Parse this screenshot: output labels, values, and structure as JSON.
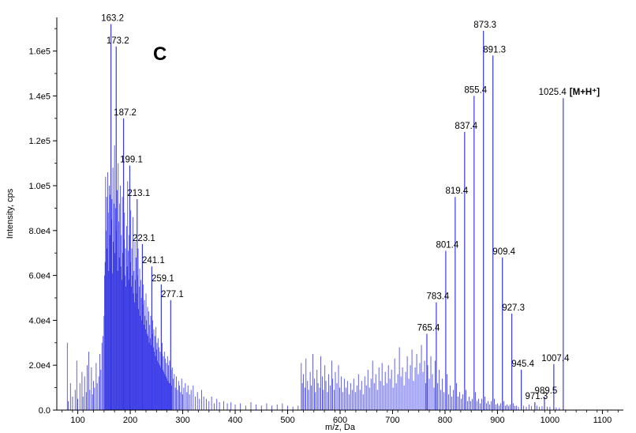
{
  "chart_data": {
    "type": "bar",
    "title": "",
    "panel_letter": "C",
    "xlabel": "m/z, Da",
    "ylabel": "Intensity, cps",
    "xlim": [
      60,
      1140
    ],
    "ylim": [
      0,
      175000
    ],
    "x_ticks": [
      100,
      200,
      300,
      400,
      500,
      600,
      700,
      800,
      900,
      1000,
      1100
    ],
    "x_tick_labels": [
      "100",
      "200",
      "300",
      "400",
      "500",
      "600",
      "700",
      "800",
      "900",
      "1000",
      "1100"
    ],
    "y_ticks": [
      0,
      20000,
      40000,
      60000,
      80000,
      100000,
      120000,
      140000,
      160000
    ],
    "y_tick_labels": [
      "0.0",
      "2.0e4",
      "4.0e4",
      "6.0e4",
      "8.0e4",
      "1.0e5",
      "1.2e5",
      "1.4e5",
      "1.6e5"
    ],
    "grid": false,
    "color": "#3a3ae8",
    "labeled_peaks": [
      {
        "mz": 163.2,
        "intensity": 172000,
        "label": "163.2"
      },
      {
        "mz": 173.2,
        "intensity": 162000,
        "label": "173.2"
      },
      {
        "mz": 187.2,
        "intensity": 130000,
        "label": "187.2"
      },
      {
        "mz": 199.1,
        "intensity": 109000,
        "label": "199.1"
      },
      {
        "mz": 213.1,
        "intensity": 94000,
        "label": "213.1"
      },
      {
        "mz": 223.1,
        "intensity": 74000,
        "label": "223.1"
      },
      {
        "mz": 241.1,
        "intensity": 64000,
        "label": "241.1"
      },
      {
        "mz": 259.1,
        "intensity": 56000,
        "label": "259.1"
      },
      {
        "mz": 277.1,
        "intensity": 49000,
        "label": "277.1"
      },
      {
        "mz": 765.4,
        "intensity": 34000,
        "label": "765.4"
      },
      {
        "mz": 783.4,
        "intensity": 48000,
        "label": "783.4"
      },
      {
        "mz": 801.4,
        "intensity": 71000,
        "label": "801.4"
      },
      {
        "mz": 819.4,
        "intensity": 95000,
        "label": "819.4"
      },
      {
        "mz": 837.4,
        "intensity": 124000,
        "label": "837.4"
      },
      {
        "mz": 855.4,
        "intensity": 140000,
        "label": "855.4"
      },
      {
        "mz": 873.3,
        "intensity": 169000,
        "label": "873.3"
      },
      {
        "mz": 891.3,
        "intensity": 158000,
        "label": "891.3"
      },
      {
        "mz": 909.4,
        "intensity": 68000,
        "label": "909.4"
      },
      {
        "mz": 927.3,
        "intensity": 43000,
        "label": "927.3"
      },
      {
        "mz": 945.4,
        "intensity": 18000,
        "label": "945.4"
      },
      {
        "mz": 971.3,
        "intensity": 3500,
        "label": "971.3"
      },
      {
        "mz": 989.5,
        "intensity": 6000,
        "label": "989.5"
      },
      {
        "mz": 1007.4,
        "intensity": 20500,
        "label": "1007.4"
      },
      {
        "mz": 1025.4,
        "intensity": 139000,
        "label": "1025.4",
        "annotation": "[M+H⁺]"
      }
    ],
    "minor_peaks": [
      [
        80,
        30000
      ],
      [
        82,
        4000
      ],
      [
        86,
        12000
      ],
      [
        90,
        6000
      ],
      [
        95,
        9000
      ],
      [
        98,
        22000
      ],
      [
        100,
        5000
      ],
      [
        104,
        12000
      ],
      [
        108,
        17000
      ],
      [
        110,
        6000
      ],
      [
        113,
        15000
      ],
      [
        116,
        8000
      ],
      [
        118,
        20000
      ],
      [
        121,
        26000
      ],
      [
        123,
        9000
      ],
      [
        126,
        19000
      ],
      [
        128,
        7000
      ],
      [
        130,
        13000
      ],
      [
        132,
        10000
      ],
      [
        135,
        21000
      ],
      [
        137,
        12000
      ],
      [
        140,
        15000
      ],
      [
        142,
        25000
      ],
      [
        144,
        18000
      ],
      [
        146,
        30000
      ],
      [
        148,
        33000
      ],
      [
        150,
        42000
      ],
      [
        151,
        60000
      ],
      [
        152,
        66000
      ],
      [
        153,
        104000
      ],
      [
        154,
        80000
      ],
      [
        155,
        95000
      ],
      [
        156,
        72000
      ],
      [
        157,
        106000
      ],
      [
        158,
        88000
      ],
      [
        159,
        62000
      ],
      [
        160,
        100000
      ],
      [
        161,
        78000
      ],
      [
        162,
        96000
      ],
      [
        164,
        85000
      ],
      [
        165,
        94000
      ],
      [
        166,
        61000
      ],
      [
        167,
        108000
      ],
      [
        168,
        75000
      ],
      [
        169,
        92000
      ],
      [
        170,
        118000
      ],
      [
        171,
        70000
      ],
      [
        172,
        90000
      ],
      [
        174,
        80000
      ],
      [
        175,
        98000
      ],
      [
        176,
        62000
      ],
      [
        177,
        110000
      ],
      [
        178,
        84000
      ],
      [
        179,
        68000
      ],
      [
        180,
        92000
      ],
      [
        181,
        100000
      ],
      [
        182,
        64000
      ],
      [
        183,
        78000
      ],
      [
        184,
        58000
      ],
      [
        185,
        95000
      ],
      [
        186,
        70000
      ],
      [
        188,
        76000
      ],
      [
        189,
        88000
      ],
      [
        190,
        60000
      ],
      [
        191,
        72000
      ],
      [
        192,
        55000
      ],
      [
        193,
        82000
      ],
      [
        194,
        64000
      ],
      [
        195,
        102000
      ],
      [
        196,
        71000
      ],
      [
        197,
        58000
      ],
      [
        198,
        78000
      ],
      [
        200,
        66000
      ],
      [
        201,
        89000
      ],
      [
        202,
        55000
      ],
      [
        203,
        72000
      ],
      [
        204,
        60000
      ],
      [
        205,
        86000
      ],
      [
        206,
        52000
      ],
      [
        207,
        62000
      ],
      [
        208,
        48000
      ],
      [
        209,
        75000
      ],
      [
        210,
        58000
      ],
      [
        211,
        68000
      ],
      [
        212,
        52000
      ],
      [
        214,
        60000
      ],
      [
        215,
        72000
      ],
      [
        216,
        45000
      ],
      [
        217,
        55000
      ],
      [
        218,
        63000
      ],
      [
        219,
        42000
      ],
      [
        220,
        58000
      ],
      [
        221,
        50000
      ],
      [
        222,
        40000
      ],
      [
        224,
        47000
      ],
      [
        225,
        56000
      ],
      [
        226,
        38000
      ],
      [
        227,
        49000
      ],
      [
        228,
        42000
      ],
      [
        229,
        36000
      ],
      [
        230,
        52000
      ],
      [
        231,
        40000
      ],
      [
        232,
        34000
      ],
      [
        233,
        46000
      ],
      [
        234,
        33000
      ],
      [
        235,
        44000
      ],
      [
        236,
        30000
      ],
      [
        237,
        38000
      ],
      [
        238,
        32000
      ],
      [
        239,
        42000
      ],
      [
        240,
        29000
      ],
      [
        242,
        34000
      ],
      [
        243,
        40000
      ],
      [
        244,
        28000
      ],
      [
        245,
        36000
      ],
      [
        246,
        26000
      ],
      [
        247,
        33000
      ],
      [
        248,
        24000
      ],
      [
        249,
        37000
      ],
      [
        250,
        27000
      ],
      [
        251,
        30000
      ],
      [
        252,
        22000
      ],
      [
        253,
        32000
      ],
      [
        254,
        21000
      ],
      [
        255,
        28000
      ],
      [
        256,
        20000
      ],
      [
        257,
        26000
      ],
      [
        258,
        19000
      ],
      [
        260,
        25000
      ],
      [
        261,
        30000
      ],
      [
        262,
        18000
      ],
      [
        263,
        24000
      ],
      [
        264,
        17000
      ],
      [
        265,
        26000
      ],
      [
        266,
        16000
      ],
      [
        267,
        23000
      ],
      [
        268,
        15000
      ],
      [
        269,
        21000
      ],
      [
        270,
        14000
      ],
      [
        271,
        24000
      ],
      [
        272,
        13000
      ],
      [
        273,
        20000
      ],
      [
        274,
        12000
      ],
      [
        275,
        22000
      ],
      [
        276,
        12000
      ],
      [
        278,
        18000
      ],
      [
        279,
        11000
      ],
      [
        280,
        19000
      ],
      [
        282,
        14000
      ],
      [
        284,
        16000
      ],
      [
        286,
        10000
      ],
      [
        288,
        15000
      ],
      [
        290,
        9000
      ],
      [
        292,
        13000
      ],
      [
        294,
        11000
      ],
      [
        296,
        8000
      ],
      [
        298,
        14000
      ],
      [
        300,
        7000
      ],
      [
        302,
        10000
      ],
      [
        305,
        12000
      ],
      [
        308,
        8000
      ],
      [
        310,
        11000
      ],
      [
        313,
        7000
      ],
      [
        316,
        9000
      ],
      [
        320,
        11000
      ],
      [
        324,
        6000
      ],
      [
        328,
        8000
      ],
      [
        332,
        5000
      ],
      [
        336,
        9000
      ],
      [
        340,
        6000
      ],
      [
        345,
        5000
      ],
      [
        350,
        4000
      ],
      [
        355,
        6000
      ],
      [
        360,
        3000
      ],
      [
        365,
        5000
      ],
      [
        370,
        3500
      ],
      [
        378,
        4000
      ],
      [
        385,
        3000
      ],
      [
        392,
        3500
      ],
      [
        400,
        2500
      ],
      [
        410,
        3000
      ],
      [
        420,
        2000
      ],
      [
        430,
        3500
      ],
      [
        440,
        2500
      ],
      [
        450,
        2000
      ],
      [
        460,
        3000
      ],
      [
        470,
        2000
      ],
      [
        480,
        2500
      ],
      [
        490,
        3000
      ],
      [
        500,
        2000
      ],
      [
        510,
        1500
      ],
      [
        520,
        2000
      ],
      [
        526,
        21000
      ],
      [
        528,
        12000
      ],
      [
        530,
        16000
      ],
      [
        533,
        10000
      ],
      [
        535,
        23000
      ],
      [
        538,
        13000
      ],
      [
        540,
        9000
      ],
      [
        543,
        17000
      ],
      [
        545,
        11000
      ],
      [
        548,
        25000
      ],
      [
        551,
        14000
      ],
      [
        553,
        8000
      ],
      [
        556,
        18000
      ],
      [
        558,
        12000
      ],
      [
        561,
        10000
      ],
      [
        563,
        24000
      ],
      [
        566,
        15000
      ],
      [
        568,
        9000
      ],
      [
        571,
        20000
      ],
      [
        573,
        13000
      ],
      [
        576,
        8000
      ],
      [
        578,
        16000
      ],
      [
        581,
        11000
      ],
      [
        584,
        22000
      ],
      [
        586,
        14000
      ],
      [
        589,
        9000
      ],
      [
        591,
        17000
      ],
      [
        594,
        12000
      ],
      [
        597,
        20000
      ],
      [
        599,
        10000
      ],
      [
        602,
        15000
      ],
      [
        605,
        8000
      ],
      [
        608,
        14000
      ],
      [
        611,
        10000
      ],
      [
        614,
        13000
      ],
      [
        617,
        7000
      ],
      [
        620,
        12000
      ],
      [
        623,
        9000
      ],
      [
        626,
        14000
      ],
      [
        629,
        8000
      ],
      [
        632,
        11000
      ],
      [
        635,
        16000
      ],
      [
        638,
        9000
      ],
      [
        641,
        13000
      ],
      [
        644,
        7000
      ],
      [
        647,
        15000
      ],
      [
        650,
        11000
      ],
      [
        653,
        18000
      ],
      [
        656,
        10000
      ],
      [
        659,
        14000
      ],
      [
        662,
        22000
      ],
      [
        665,
        12000
      ],
      [
        668,
        16000
      ],
      [
        671,
        9000
      ],
      [
        674,
        19000
      ],
      [
        677,
        13000
      ],
      [
        680,
        21000
      ],
      [
        683,
        11000
      ],
      [
        686,
        17000
      ],
      [
        689,
        12000
      ],
      [
        692,
        20000
      ],
      [
        695,
        14000
      ],
      [
        698,
        18000
      ],
      [
        701,
        10000
      ],
      [
        704,
        23000
      ],
      [
        707,
        12000
      ],
      [
        710,
        16000
      ],
      [
        713,
        28000
      ],
      [
        716,
        15000
      ],
      [
        719,
        19000
      ],
      [
        722,
        11000
      ],
      [
        725,
        17000
      ],
      [
        728,
        24000
      ],
      [
        731,
        14000
      ],
      [
        734,
        20000
      ],
      [
        737,
        27000
      ],
      [
        740,
        13000
      ],
      [
        743,
        19000
      ],
      [
        746,
        25000
      ],
      [
        749,
        16000
      ],
      [
        752,
        21000
      ],
      [
        755,
        29000
      ],
      [
        758,
        17000
      ],
      [
        761,
        22000
      ],
      [
        763,
        12000
      ],
      [
        767,
        20000
      ],
      [
        770,
        14000
      ],
      [
        773,
        24000
      ],
      [
        776,
        16000
      ],
      [
        779,
        10000
      ],
      [
        781,
        22000
      ],
      [
        786,
        12000
      ],
      [
        789,
        18000
      ],
      [
        792,
        9000
      ],
      [
        795,
        14000
      ],
      [
        798,
        8000
      ],
      [
        804,
        16000
      ],
      [
        807,
        7000
      ],
      [
        810,
        11000
      ],
      [
        813,
        6000
      ],
      [
        816,
        9000
      ],
      [
        822,
        12000
      ],
      [
        825,
        6000
      ],
      [
        828,
        8000
      ],
      [
        831,
        5000
      ],
      [
        834,
        7000
      ],
      [
        840,
        9000
      ],
      [
        843,
        4000
      ],
      [
        846,
        6000
      ],
      [
        849,
        4000
      ],
      [
        852,
        5000
      ],
      [
        858,
        8000
      ],
      [
        861,
        4000
      ],
      [
        864,
        5000
      ],
      [
        867,
        3000
      ],
      [
        870,
        5000
      ],
      [
        876,
        6000
      ],
      [
        879,
        3000
      ],
      [
        882,
        4000
      ],
      [
        885,
        2500
      ],
      [
        888,
        4000
      ],
      [
        894,
        5000
      ],
      [
        897,
        2500
      ],
      [
        900,
        3000
      ],
      [
        903,
        2000
      ],
      [
        906,
        3000
      ],
      [
        912,
        4000
      ],
      [
        915,
        2000
      ],
      [
        918,
        2500
      ],
      [
        921,
        1800
      ],
      [
        924,
        2500
      ],
      [
        930,
        3000
      ],
      [
        933,
        1800
      ],
      [
        936,
        2000
      ],
      [
        940,
        1500
      ],
      [
        950,
        2000
      ],
      [
        955,
        1500
      ],
      [
        960,
        2500
      ],
      [
        965,
        1800
      ],
      [
        975,
        2000
      ],
      [
        980,
        1500
      ],
      [
        985,
        1800
      ],
      [
        995,
        1500
      ],
      [
        1000,
        1500
      ],
      [
        1012,
        1200
      ],
      [
        1018,
        1000
      ]
    ]
  }
}
